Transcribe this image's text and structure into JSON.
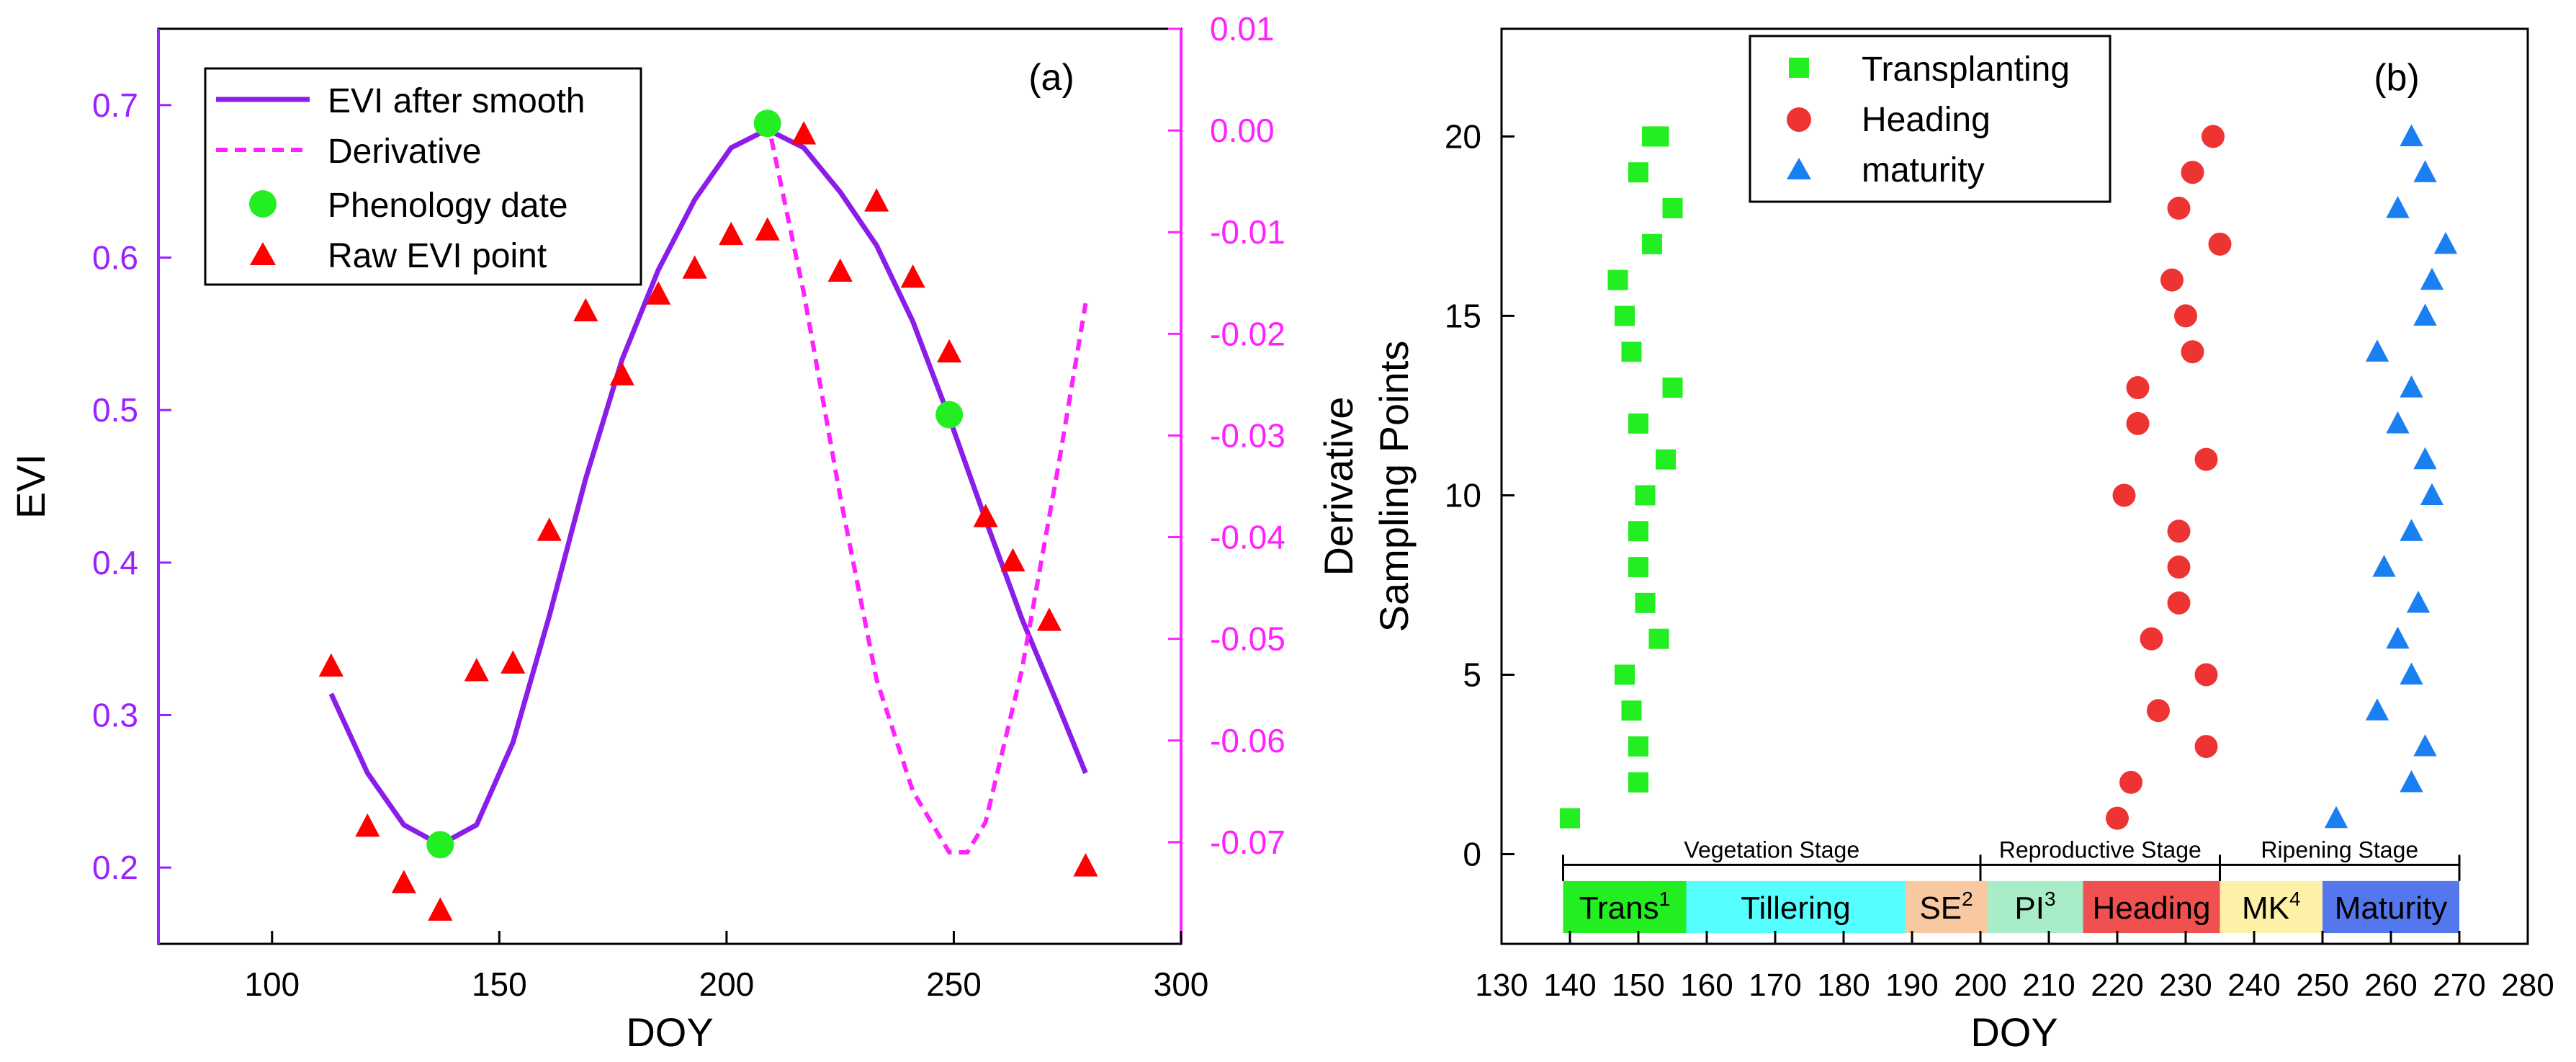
{
  "colors": {
    "smooth": "#8a1ee8",
    "derivative": "#ff22ff",
    "phenology": "#22ee22",
    "raw": "#ff0000",
    "axis_left": "#9a22ff",
    "axis_right": "#ff22ff",
    "transplanting": "#22ee22",
    "heading": "#ee3333",
    "maturity": "#1a7ff0"
  },
  "chart_data": [
    {
      "id": "a",
      "type": "line",
      "panel_label": "(a)",
      "xlabel": "DOY",
      "ylabel": "EVI",
      "y2label": "Derivative",
      "xlim": [
        75,
        300
      ],
      "ylim": [
        0.15,
        0.75
      ],
      "y2lim": [
        -0.08,
        0.01
      ],
      "xticks": [
        100,
        150,
        200,
        250,
        300
      ],
      "yticks": [
        0.2,
        0.3,
        0.4,
        0.5,
        0.6,
        0.7
      ],
      "ytick_labels": [
        "0.2",
        "0.3",
        "0.4",
        "0.5",
        "0.6",
        "0.7"
      ],
      "y2ticks": [
        0.01,
        0.0,
        -0.01,
        -0.02,
        -0.03,
        -0.04,
        -0.05,
        -0.06,
        -0.07
      ],
      "y2tick_labels": [
        "0.01",
        "0.00",
        "-0.01",
        "-0.02",
        "-0.03",
        "-0.04",
        "-0.05",
        "-0.06",
        "-0.07"
      ],
      "legend": [
        "EVI after smooth",
        "Derivative",
        "Phenology date",
        "Raw EVI point"
      ],
      "series": [
        {
          "name": "EVI after smooth",
          "style": "solid",
          "axis": "left",
          "x": [
            113,
            121,
            129,
            137,
            145,
            153,
            161,
            169,
            177,
            185,
            193,
            201,
            209,
            217,
            225,
            233,
            241,
            249,
            257,
            265,
            273,
            279
          ],
          "y": [
            0.314,
            0.262,
            0.228,
            0.215,
            0.228,
            0.282,
            0.365,
            0.455,
            0.533,
            0.592,
            0.638,
            0.672,
            0.684,
            0.672,
            0.643,
            0.608,
            0.558,
            0.495,
            0.428,
            0.363,
            0.306,
            0.262
          ]
        },
        {
          "name": "Derivative",
          "style": "dashed",
          "axis": "right",
          "x": [
            209,
            217,
            225,
            233,
            241,
            249,
            253,
            257,
            265,
            273,
            279
          ],
          "y": [
            0.001,
            -0.016,
            -0.036,
            -0.054,
            -0.065,
            -0.071,
            -0.071,
            -0.068,
            -0.053,
            -0.033,
            -0.017
          ]
        },
        {
          "name": "Phenology date",
          "style": "marker-circle",
          "axis": "left",
          "x": [
            137,
            209,
            249
          ],
          "y": [
            0.215,
            0.688,
            0.497
          ]
        },
        {
          "name": "Raw EVI point",
          "style": "marker-triangle",
          "axis": "left",
          "x": [
            113,
            121,
            129,
            137,
            145,
            153,
            161,
            169,
            177,
            185,
            193,
            201,
            209,
            217,
            225,
            233,
            241,
            249,
            257,
            263,
            271,
            279
          ],
          "y": [
            0.332,
            0.227,
            0.19,
            0.172,
            0.329,
            0.334,
            0.421,
            0.565,
            0.523,
            0.576,
            0.593,
            0.615,
            0.618,
            0.681,
            0.591,
            0.637,
            0.587,
            0.538,
            0.43,
            0.401,
            0.362,
            0.201
          ]
        }
      ]
    },
    {
      "id": "b",
      "type": "scatter",
      "panel_label": "(b)",
      "xlabel": "DOY",
      "ylabel": "Sampling Points",
      "xlim": [
        130,
        280
      ],
      "ylim": [
        -2.5,
        23
      ],
      "xticks": [
        130,
        140,
        150,
        160,
        170,
        180,
        190,
        200,
        210,
        220,
        230,
        240,
        250,
        260,
        270,
        280
      ],
      "yticks": [
        0,
        5,
        10,
        15,
        20
      ],
      "legend": [
        "Transplanting",
        "Heading",
        "maturity"
      ],
      "series": [
        {
          "name": "Transplanting",
          "marker": "square",
          "x": [
            140,
            150,
            150,
            149,
            148,
            153,
            151,
            150,
            150,
            151,
            154,
            150,
            155,
            149,
            148,
            147,
            152,
            155,
            150,
            152,
            153
          ],
          "y": [
            1,
            2,
            3,
            4,
            5,
            6,
            7,
            8,
            9,
            10,
            11,
            12,
            13,
            14,
            15,
            16,
            17,
            18,
            19,
            20,
            20
          ]
        },
        {
          "name": "Heading",
          "marker": "circle",
          "x": [
            220,
            222,
            233,
            226,
            233,
            225,
            229,
            229,
            229,
            221,
            233,
            223,
            223,
            231,
            230,
            228,
            235,
            229,
            231,
            234
          ],
          "y": [
            1,
            2,
            3,
            4,
            5,
            6,
            7,
            8,
            9,
            10,
            11,
            12,
            13,
            14,
            15,
            16,
            17,
            18,
            19,
            20
          ]
        },
        {
          "name": "maturity",
          "marker": "triangle",
          "x": [
            252,
            263,
            265,
            258,
            263,
            261,
            264,
            259,
            263,
            266,
            265,
            261,
            263,
            258,
            265,
            266,
            268,
            261,
            265,
            263
          ],
          "y": [
            1,
            2,
            3,
            4,
            5,
            6,
            7,
            8,
            9,
            10,
            11,
            12,
            13,
            14,
            15,
            16,
            17,
            18,
            19,
            20
          ]
        }
      ],
      "stage_groups": [
        {
          "label": "Vegetation Stage",
          "start": 139,
          "end": 200
        },
        {
          "label": "Reproductive Stage",
          "start": 200,
          "end": 235
        },
        {
          "label": "Ripening Stage",
          "start": 235,
          "end": 270
        }
      ],
      "stages": [
        {
          "label": "Trans",
          "sup": "1",
          "start": 139,
          "end": 157,
          "color": "#22ee22"
        },
        {
          "label": "Tillering",
          "sup": "",
          "start": 157,
          "end": 189,
          "color": "#55ffff"
        },
        {
          "label": "SE",
          "sup": "2",
          "start": 189,
          "end": 201,
          "color": "#f8c8a0"
        },
        {
          "label": "PI",
          "sup": "3",
          "start": 201,
          "end": 215,
          "color": "#a8ecc8"
        },
        {
          "label": "Heading",
          "sup": "",
          "start": 215,
          "end": 235,
          "color": "#f05050"
        },
        {
          "label": "MK",
          "sup": "4",
          "start": 235,
          "end": 250,
          "color": "#fff0a8"
        },
        {
          "label": "Maturity",
          "sup": "",
          "start": 250,
          "end": 270,
          "color": "#5577ee"
        }
      ]
    }
  ]
}
